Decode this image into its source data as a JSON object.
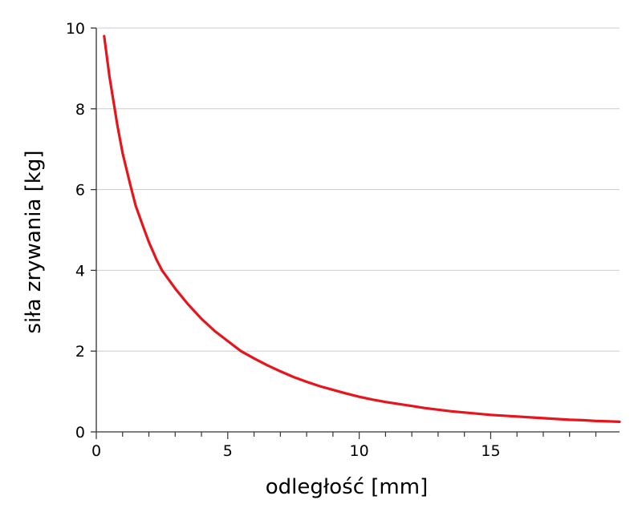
{
  "chart_data": {
    "type": "line",
    "title": "",
    "xlabel": "odległość [mm]",
    "ylabel": "siła zrywania [kg]",
    "xlim": [
      0,
      19.9
    ],
    "ylim": [
      0,
      10
    ],
    "x_ticks": [
      0,
      5,
      10,
      15
    ],
    "y_ticks": [
      0,
      2,
      4,
      6,
      8,
      10
    ],
    "x_minor_step": 1,
    "grid": "horizontal",
    "legend": "none",
    "series": [
      {
        "color": "#e8141b",
        "x": [
          0.3,
          0.5,
          0.8,
          1.0,
          1.3,
          1.5,
          1.8,
          2.0,
          2.3,
          2.5,
          3.0,
          3.5,
          4.0,
          4.5,
          5.0,
          5.5,
          6.0,
          6.5,
          7.0,
          7.5,
          8.0,
          8.5,
          9.0,
          9.5,
          10.0,
          10.5,
          11.0,
          11.5,
          12.0,
          12.5,
          13.0,
          13.5,
          14.0,
          14.5,
          15.0,
          15.5,
          16.0,
          16.5,
          17.0,
          17.5,
          18.0,
          18.5,
          19.0,
          19.5,
          19.9
        ],
        "y": [
          9.8,
          8.8,
          7.6,
          6.9,
          6.1,
          5.6,
          5.05,
          4.7,
          4.25,
          4.0,
          3.55,
          3.15,
          2.8,
          2.5,
          2.25,
          2.0,
          1.82,
          1.65,
          1.5,
          1.36,
          1.24,
          1.13,
          1.04,
          0.95,
          0.87,
          0.8,
          0.74,
          0.69,
          0.64,
          0.59,
          0.55,
          0.51,
          0.48,
          0.45,
          0.42,
          0.4,
          0.38,
          0.36,
          0.34,
          0.32,
          0.3,
          0.29,
          0.27,
          0.26,
          0.25
        ]
      }
    ]
  }
}
